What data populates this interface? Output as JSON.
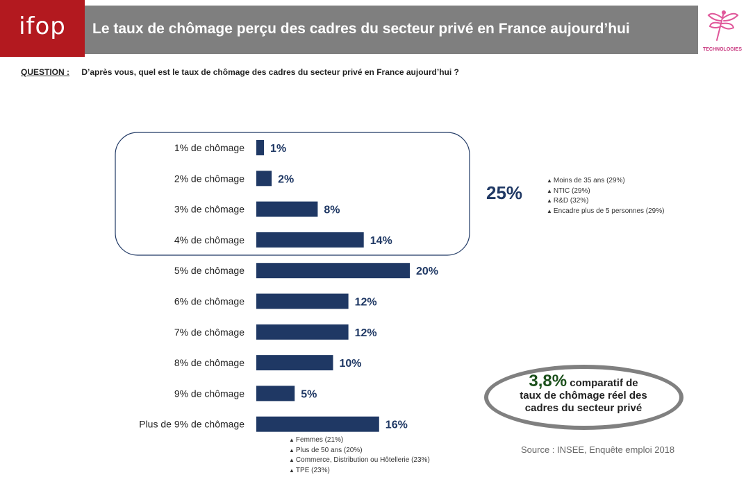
{
  "header": {
    "logo_text": "ifop",
    "title": "Le taux de chômage perçu des cadres du secteur privé en France aujourd’hui",
    "brand_text": "TECHNOLOGIES"
  },
  "question": {
    "label": "QUESTION :",
    "text": "D’après vous, quel est le taux de chômage des cadres du secteur privé en France aujourd’hui ?"
  },
  "chart_data": {
    "type": "bar",
    "orientation": "horizontal",
    "categories": [
      "1% de chômage",
      "2% de chômage",
      "3% de chômage",
      "4% de chômage",
      "5% de chômage",
      "6% de chômage",
      "7% de chômage",
      "8% de chômage",
      "9% de chômage",
      "Plus de 9% de chômage"
    ],
    "values": [
      1,
      2,
      8,
      14,
      20,
      12,
      12,
      10,
      5,
      16
    ],
    "value_labels": [
      "1%",
      "2%",
      "8%",
      "14%",
      "20%",
      "12%",
      "12%",
      "10%",
      "5%",
      "16%"
    ],
    "bar_color": "#1f3864",
    "grouped_total": {
      "label": "25%",
      "value": 25,
      "categories": [
        "1% de chômage",
        "2% de chômage",
        "3% de chômage",
        "4% de chômage"
      ]
    }
  },
  "notes_group": [
    "Moins de 35 ans (29%)",
    "NTIC (29%)",
    "R&D (32%)",
    "Encadre plus de 5 personnes (29%)"
  ],
  "notes_bottom": [
    "Femmes (21%)",
    "Plus de 50 ans (20%)",
    "Commerce, Distribution ou Hôtellerie (23%)",
    "TPE (23%)"
  ],
  "comparison": {
    "value": "3,8%",
    "line1": "comparatif de",
    "line2": "taux de chômage réel des",
    "line3": "cadres du secteur privé"
  },
  "source": "Source : INSEE, Enquête emploi 2018"
}
